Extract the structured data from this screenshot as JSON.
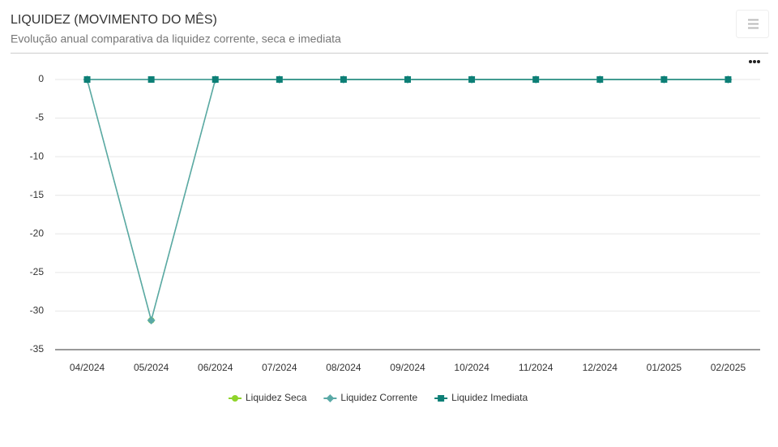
{
  "chart_data": {
    "type": "line",
    "title": "LIQUIDEZ (MOVIMENTO DO MÊS)",
    "subtitle": "Evolução anual comparativa da liquidez corrente, seca e imediata",
    "categories": [
      "04/2024",
      "05/2024",
      "06/2024",
      "07/2024",
      "08/2024",
      "09/2024",
      "10/2024",
      "11/2024",
      "12/2024",
      "01/2025",
      "02/2025"
    ],
    "series": [
      {
        "name": "Liquidez Seca",
        "color": "#8fd42a",
        "line_color": "#7dbb8a",
        "marker": "circle",
        "values": [
          0,
          -31.2,
          0,
          0,
          0,
          0,
          0,
          0,
          0,
          0,
          0
        ]
      },
      {
        "name": "Liquidez Corrente",
        "color": "#5aa9a6",
        "line_color": "#5aa9a6",
        "marker": "diamond",
        "values": [
          0,
          -31.2,
          0,
          0,
          0,
          0,
          0,
          0,
          0,
          0,
          0
        ]
      },
      {
        "name": "Liquidez Imediata",
        "color": "#0d7f76",
        "line_color": "#2a8f85",
        "marker": "square",
        "values": [
          0,
          0,
          0,
          0,
          0,
          0,
          0,
          0,
          0,
          0,
          0
        ]
      }
    ],
    "ylim": [
      -35,
      0
    ],
    "yticks": [
      0,
      -5,
      -10,
      -15,
      -20,
      -25,
      -30,
      -35
    ],
    "grid": true
  }
}
